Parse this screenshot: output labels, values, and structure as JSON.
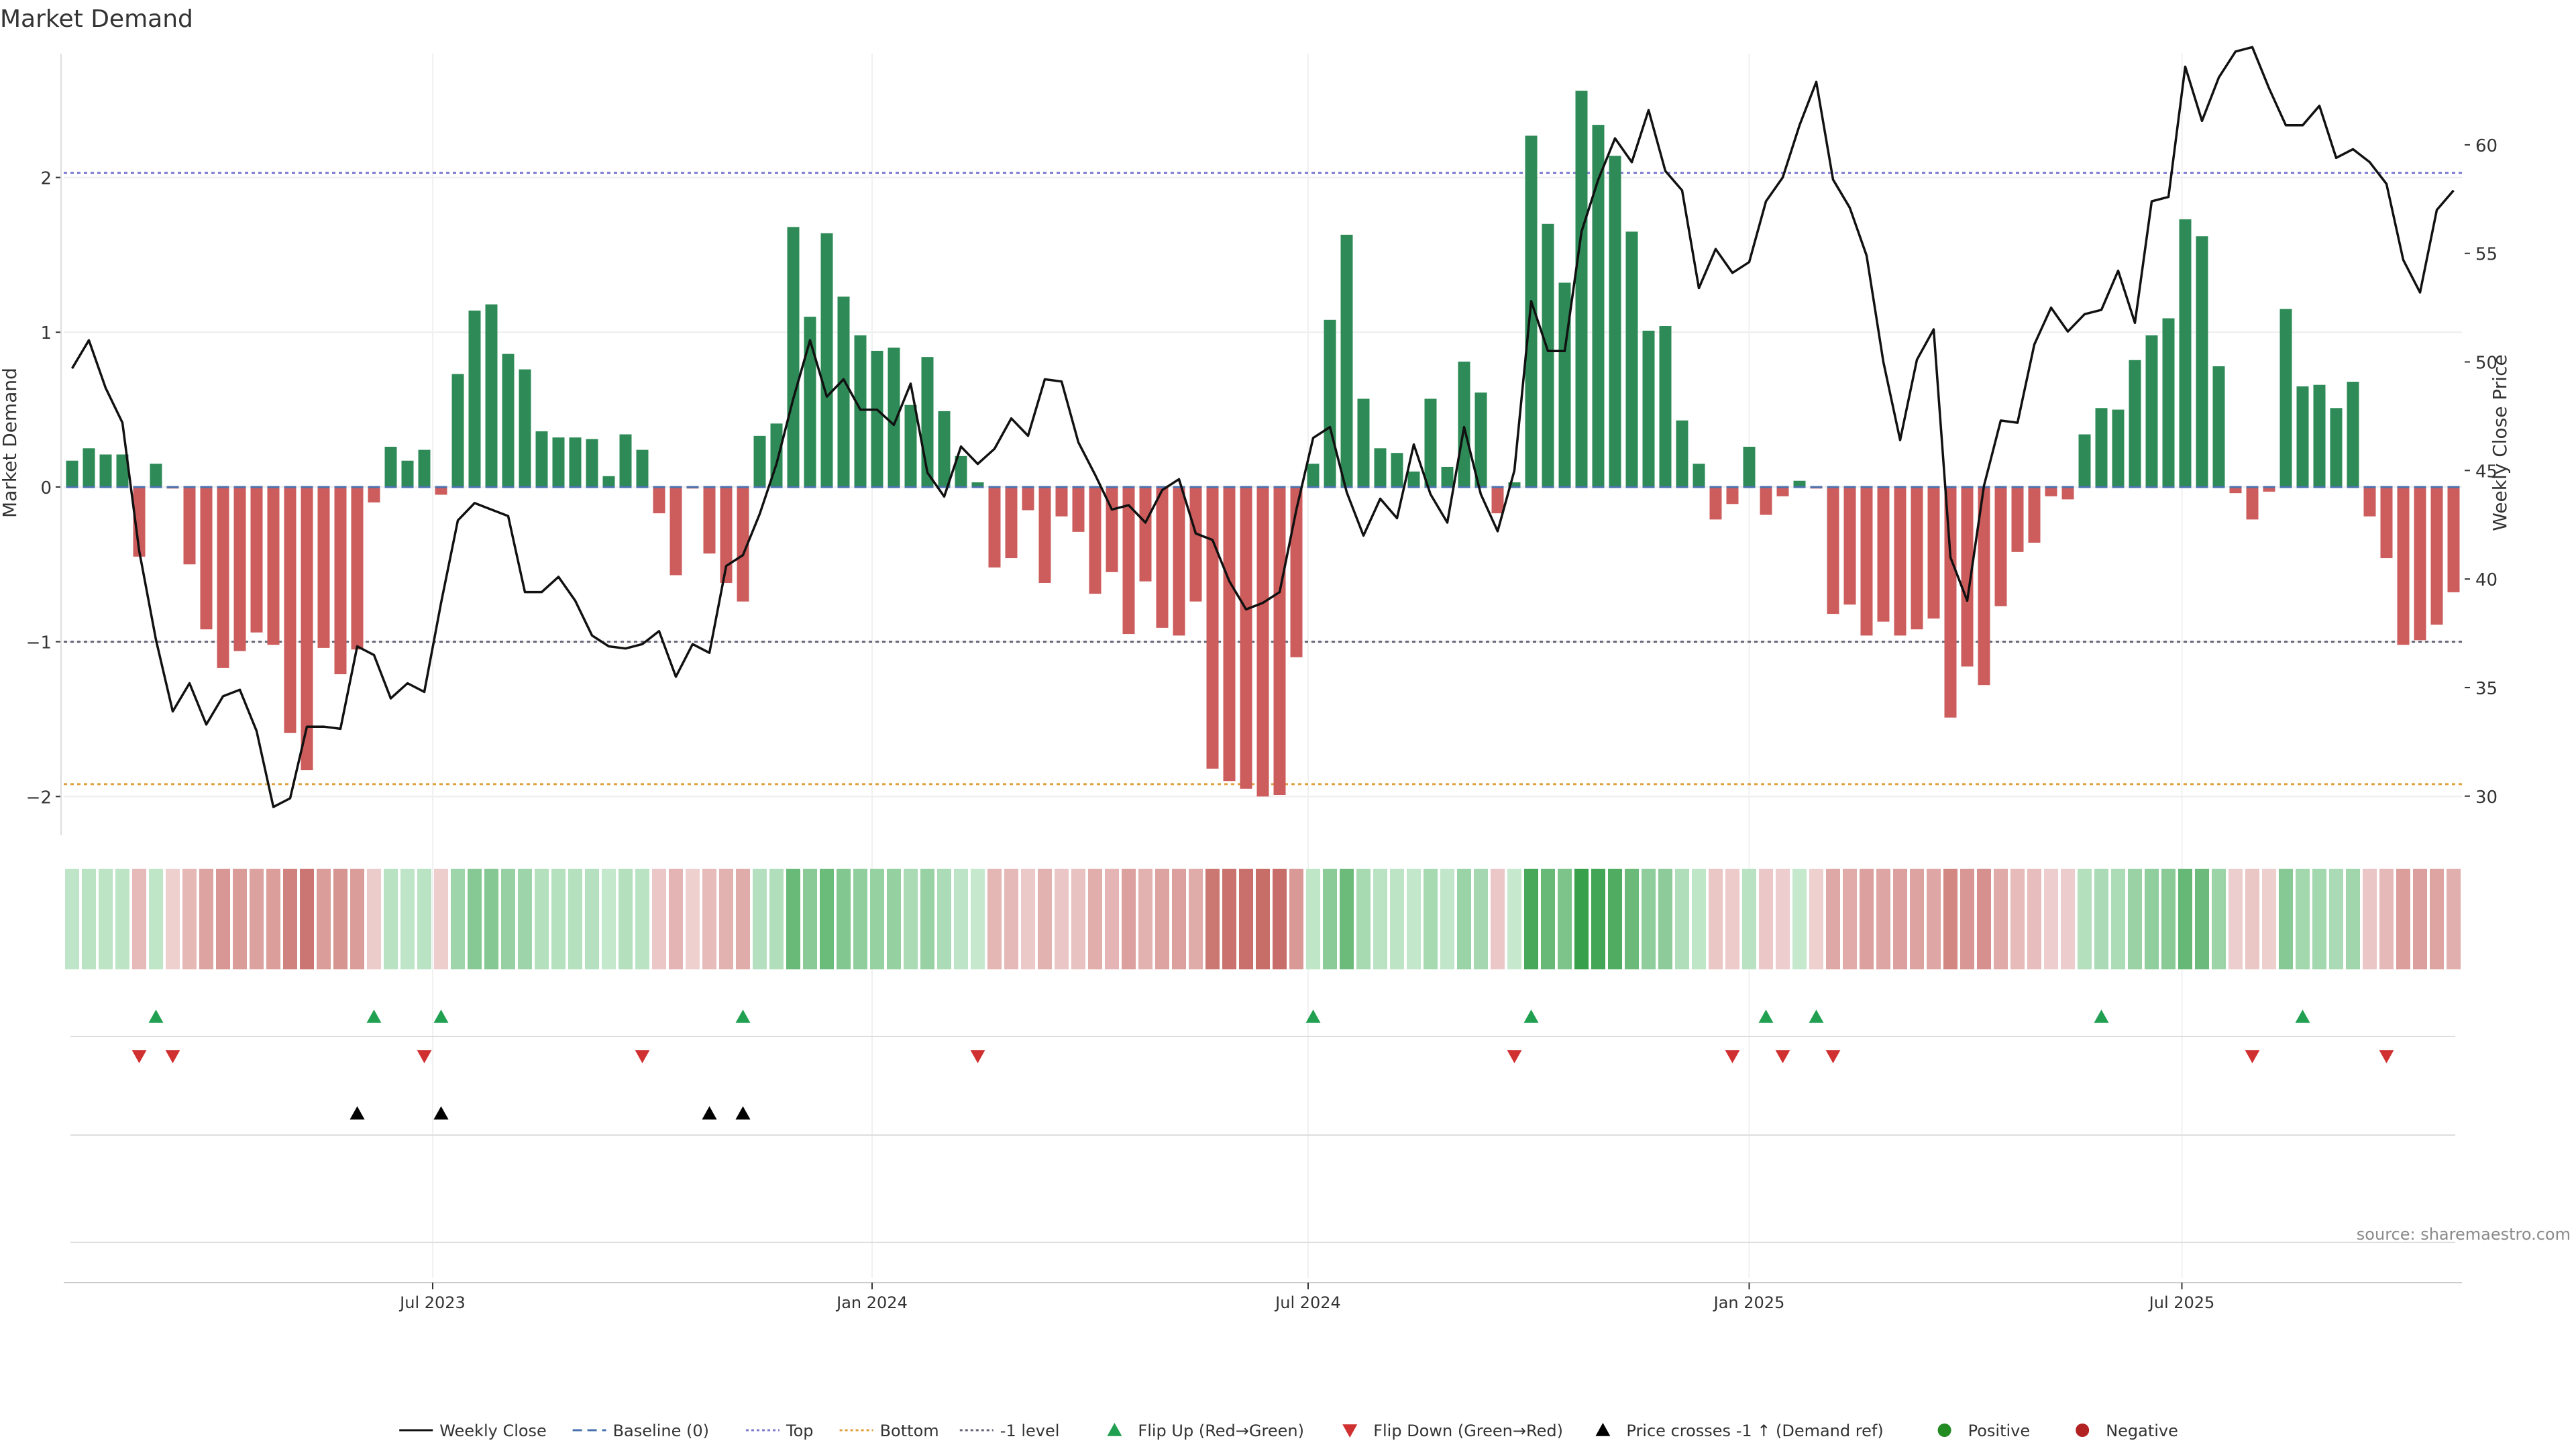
{
  "title": "Market Demand",
  "source": "source: sharemaestro.com",
  "colors": {
    "bar_positive": "#2e8b57",
    "bar_negative": "#cd5c5c",
    "price_line": "#111111",
    "top_line": "#7b7bd0",
    "bottom_line": "#e0a040",
    "minus_one_line": "#666677",
    "baseline": "#4a72b0",
    "flip_up": "#20a050",
    "flip_down": "#d03030",
    "cross_marker": "#000000",
    "positive": "#228b22",
    "negative": "#b22222"
  },
  "legend": [
    {
      "label": "Weekly Close",
      "icon": "solid-line-icon"
    },
    {
      "label": "Baseline (0)",
      "icon": "dashed-line-icon"
    },
    {
      "label": "Top",
      "icon": "dotted-line-icon"
    },
    {
      "label": "Bottom",
      "icon": "dotted-line-icon"
    },
    {
      "label": "-1 level",
      "icon": "dotted-line-icon"
    },
    {
      "label": "Flip Up (Red→Green)",
      "icon": "triangle-up-icon"
    },
    {
      "label": "Flip Down (Green→Red)",
      "icon": "triangle-down-icon"
    },
    {
      "label": "Price crosses -1 ↑ (Demand ref)",
      "icon": "triangle-up-icon"
    },
    {
      "label": "Positive",
      "icon": "dot-icon"
    },
    {
      "label": "Negative",
      "icon": "dot-icon"
    }
  ],
  "chart_data": {
    "type": "bar",
    "title": "Market Demand",
    "ylabel": "Market Demand",
    "y2label": "Weekly Close Price",
    "ylim": [
      -2.25,
      2.8
    ],
    "y2lim": [
      28.2,
      64.2
    ],
    "yticks": [
      2,
      1,
      0,
      -1,
      -2
    ],
    "ytick_labels": [
      "2",
      "1",
      "0",
      "−1",
      "−2"
    ],
    "y2ticks": [
      60,
      55,
      50,
      45,
      40,
      35,
      30
    ],
    "x_tick_labels": [
      "Jul 2023",
      "Jan 2024",
      "Jul 2024",
      "Jan 2025",
      "Jul 2025"
    ],
    "x_tick_weeks": [
      21.5,
      47.7,
      73.7,
      100.0,
      125.8
    ],
    "levels": {
      "top": 2.03,
      "bottom": -1.92,
      "minus_one": -1.0,
      "baseline": 0
    },
    "demand": [
      0.17,
      0.25,
      0.21,
      0.21,
      -0.45,
      0.15,
      -0.01,
      -0.5,
      -0.92,
      -1.17,
      -1.06,
      -0.94,
      -1.02,
      -1.59,
      -1.83,
      -1.04,
      -1.21,
      -1.05,
      -0.1,
      0.26,
      0.17,
      0.24,
      -0.05,
      0.73,
      1.14,
      1.18,
      0.86,
      0.76,
      0.36,
      0.32,
      0.32,
      0.31,
      0.07,
      0.34,
      0.24,
      -0.17,
      -0.57,
      -0.01,
      -0.43,
      -0.62,
      -0.74,
      0.33,
      0.41,
      1.68,
      1.1,
      1.64,
      1.23,
      0.98,
      0.88,
      0.9,
      0.53,
      0.84,
      0.49,
      0.2,
      0.03,
      -0.52,
      -0.46,
      -0.15,
      -0.62,
      -0.19,
      -0.29,
      -0.69,
      -0.55,
      -0.95,
      -0.61,
      -0.91,
      -0.96,
      -0.74,
      -1.82,
      -1.9,
      -1.95,
      -2.0,
      -1.99,
      -1.1,
      0.15,
      1.08,
      1.63,
      0.57,
      0.25,
      0.22,
      0.1,
      0.57,
      0.13,
      0.81,
      0.61,
      -0.17,
      0.03,
      2.27,
      1.7,
      1.32,
      2.56,
      2.34,
      2.14,
      1.65,
      1.01,
      1.04,
      0.43,
      0.15,
      -0.21,
      -0.11,
      0.26,
      -0.18,
      -0.06,
      0.04,
      -0.01,
      -0.82,
      -0.76,
      -0.96,
      -0.87,
      -0.96,
      -0.92,
      -0.85,
      -1.49,
      -1.16,
      -1.28,
      -0.77,
      -0.42,
      -0.36,
      -0.06,
      -0.08,
      0.34,
      0.51,
      0.5,
      0.82,
      0.98,
      1.09,
      1.73,
      1.62,
      0.78,
      -0.04,
      -0.21,
      -0.03,
      1.15,
      0.65,
      0.66,
      0.51,
      0.68,
      -0.19,
      -0.46,
      -1.02,
      -0.99,
      -0.89,
      -0.68
    ],
    "price": [
      49.7,
      51.0,
      48.8,
      47.2,
      41.3,
      37.2,
      33.9,
      35.2,
      33.3,
      34.6,
      34.9,
      33.0,
      29.5,
      29.9,
      33.2,
      33.2,
      33.1,
      36.9,
      36.5,
      34.5,
      35.2,
      34.8,
      38.9,
      42.7,
      43.5,
      43.2,
      42.9,
      39.4,
      39.4,
      40.1,
      39.0,
      37.4,
      36.9,
      36.8,
      37.0,
      37.6,
      35.5,
      37.0,
      36.6,
      40.6,
      41.1,
      43.0,
      45.3,
      48.3,
      51.0,
      48.4,
      49.2,
      47.8,
      47.8,
      47.1,
      49.0,
      44.9,
      43.8,
      46.1,
      45.3,
      46.0,
      47.4,
      46.6,
      49.2,
      49.1,
      46.3,
      44.8,
      43.2,
      43.4,
      42.6,
      44.1,
      44.6,
      42.1,
      41.8,
      39.9,
      38.6,
      38.9,
      39.4,
      43.2,
      46.5,
      47.0,
      44.0,
      42.0,
      43.7,
      42.8,
      46.2,
      43.9,
      42.6,
      47.0,
      43.9,
      42.2,
      45.0,
      52.8,
      50.5,
      50.5,
      56.0,
      58.4,
      60.3,
      59.2,
      61.6,
      58.8,
      57.9,
      53.4,
      55.2,
      54.1,
      54.6,
      57.4,
      58.5,
      60.9,
      62.9,
      58.4,
      57.1,
      54.9,
      50.0,
      46.4,
      50.1,
      51.5,
      41.0,
      39.0,
      44.3,
      47.3,
      47.2,
      50.8,
      52.5,
      51.4,
      52.2,
      52.4,
      54.2,
      51.8,
      57.4,
      57.6,
      63.6,
      61.1,
      63.1,
      64.3,
      64.5,
      62.6,
      60.9,
      60.9,
      61.8,
      59.4,
      59.8,
      59.2,
      58.2,
      54.7,
      53.2,
      57.0,
      57.9
    ],
    "heat_extremes": [
      -2.0,
      2.56
    ],
    "flip_up_weeks": [
      5,
      18,
      22,
      40,
      74,
      87,
      101,
      104,
      121,
      133
    ],
    "flip_down_weeks": [
      4,
      6,
      21,
      34,
      54,
      86,
      99,
      102,
      105,
      130,
      138
    ],
    "price_cross_weeks": [
      17,
      22,
      38,
      40
    ]
  }
}
